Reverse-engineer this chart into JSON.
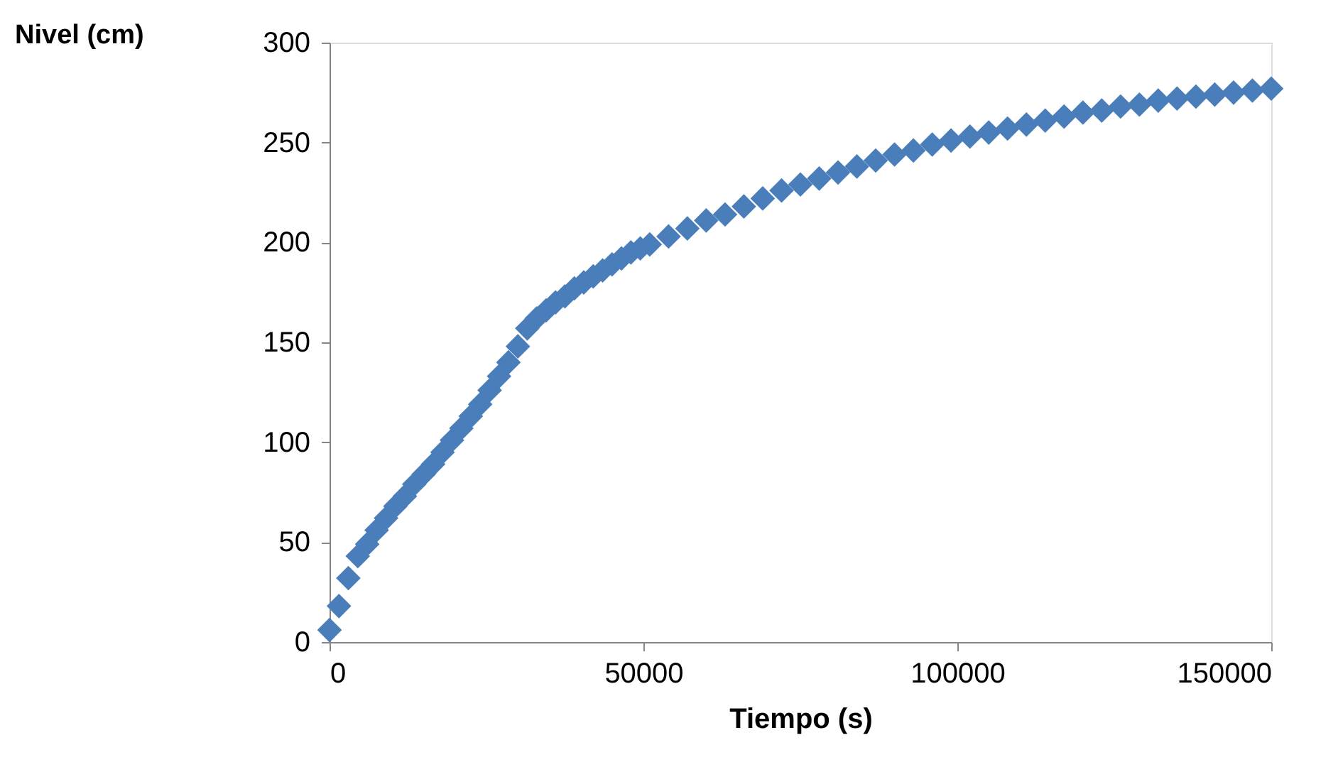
{
  "chart_data": {
    "type": "scatter",
    "xlabel": "Tiempo (s)",
    "ylabel": "Nivel (cm)",
    "marker": "diamond",
    "xlim": [
      0,
      150000
    ],
    "ylim": [
      0,
      300
    ],
    "xticks": [
      0,
      50000,
      100000,
      150000
    ],
    "yticks": [
      0,
      50,
      100,
      150,
      200,
      250,
      300
    ],
    "x": [
      0,
      1500,
      3000,
      4500,
      6000,
      7500,
      9000,
      10500,
      12000,
      13500,
      15000,
      16500,
      18000,
      19500,
      21000,
      22500,
      24000,
      25500,
      27000,
      28500,
      30000,
      31500,
      33000,
      34500,
      36000,
      37500,
      39000,
      40500,
      42000,
      43500,
      45000,
      46500,
      48000,
      49500,
      51000,
      54000,
      57000,
      60000,
      63000,
      66000,
      69000,
      72000,
      75000,
      78000,
      81000,
      84000,
      87000,
      90000,
      93000,
      96000,
      99000,
      102000,
      105000,
      108000,
      111000,
      114000,
      117000,
      120000,
      123000,
      126000,
      129000,
      132000,
      135000,
      138000,
      141000,
      144000,
      147000,
      150000
    ],
    "series": [
      {
        "color": "#4a7ebb",
        "values": [
          6,
          18,
          32,
          43,
          49,
          56,
          62,
          68,
          73,
          79,
          84,
          89,
          95,
          101,
          107,
          113,
          119,
          126,
          133,
          140,
          148,
          157,
          162,
          166,
          170,
          173,
          177,
          180,
          183,
          186,
          189,
          192,
          195,
          197,
          199,
          203,
          207,
          211,
          214,
          218,
          222,
          226,
          229,
          232,
          235,
          238,
          241,
          244,
          246,
          249,
          251,
          253,
          255,
          257,
          259,
          261,
          263,
          265,
          266,
          268,
          269,
          271,
          272,
          273,
          274,
          275,
          276,
          277
        ]
      }
    ]
  }
}
